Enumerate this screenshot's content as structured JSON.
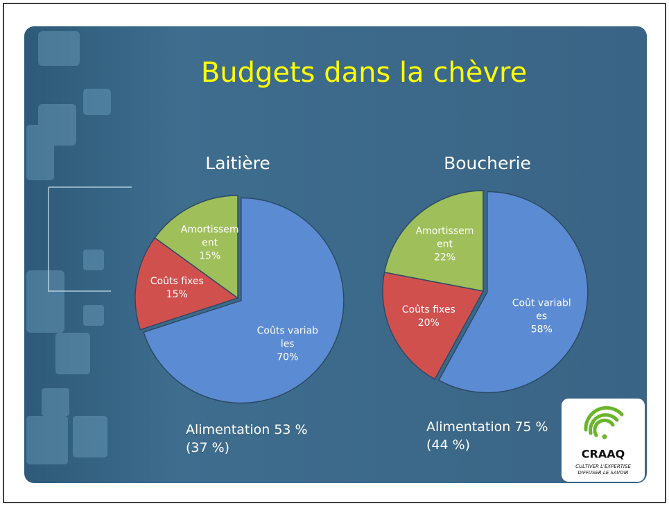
{
  "slide": {
    "title": "Budgets dans la chèvre",
    "notes": [
      [
        "Alimentation 53 %",
        "(37 %)"
      ],
      [
        "Alimentation 75 %",
        "(44 %)"
      ]
    ],
    "logo": {
      "name": "CRAAQ",
      "tagline": [
        "CULTIVER L'EXPERTISE",
        "DIFFUSER LE SAVOIR"
      ]
    }
  },
  "chart_data": [
    {
      "type": "pie",
      "title": "Laitière",
      "categories": [
        "Coûts variables",
        "Coûts fixes",
        "Amortissement"
      ],
      "values": [
        70,
        15,
        15
      ],
      "value_labels": [
        "70%",
        "15%",
        "15%"
      ],
      "colors": [
        "#5b8bd2",
        "#d0504e",
        "#9fbf5a"
      ]
    },
    {
      "type": "pie",
      "title": "Boucherie",
      "categories": [
        "Coût variables",
        "Coûts fixes",
        "Amortissement"
      ],
      "values": [
        58,
        20,
        22
      ],
      "value_labels": [
        "58%",
        "20%",
        "22%"
      ],
      "colors": [
        "#5b8bd2",
        "#d0504e",
        "#9fbf5a"
      ]
    }
  ]
}
